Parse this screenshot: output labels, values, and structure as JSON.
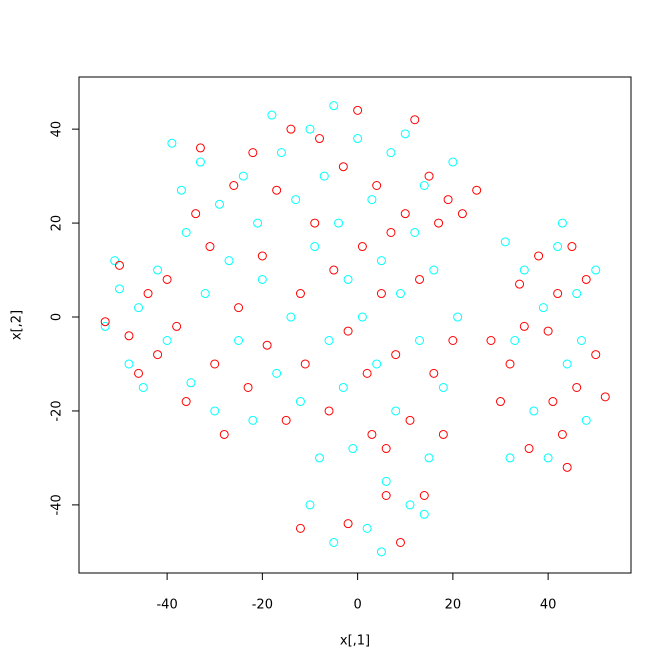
{
  "chart_data": {
    "type": "scatter",
    "x_label": "x[,1]",
    "y_label": "x[,2]",
    "xlim": [
      -58.5,
      57.4
    ],
    "ylim": [
      -54.5,
      51.1
    ],
    "xticks": [
      -40,
      -20,
      0,
      20,
      40
    ],
    "yticks": [
      -40,
      -20,
      0,
      20,
      40
    ],
    "series": [
      {
        "color": "#00ffff",
        "x": [
          -53,
          -51,
          -50,
          -48,
          -46,
          -45,
          -42,
          -40,
          -39,
          -37,
          -36,
          -35,
          -33,
          -32,
          -30,
          -29,
          -27,
          -25,
          -24,
          -22,
          -21,
          -20,
          -18,
          -17,
          -16,
          -14,
          -13,
          -12,
          -10,
          -9,
          -8,
          -7,
          -6,
          -5,
          -4,
          -3,
          -2,
          -1,
          0,
          1,
          2,
          3,
          4,
          5,
          6,
          7,
          8,
          9,
          10,
          11,
          12,
          13,
          14,
          15,
          16,
          18,
          20,
          21,
          -5,
          -10,
          5,
          14,
          31,
          33,
          35,
          37,
          39,
          40,
          42,
          43,
          44,
          46,
          48,
          50,
          32,
          47
        ],
        "values": [
          -2,
          12,
          6,
          -10,
          2,
          -15,
          10,
          -5,
          37,
          27,
          18,
          -14,
          33,
          5,
          -20,
          24,
          12,
          -5,
          30,
          -22,
          20,
          8,
          43,
          -12,
          35,
          0,
          25,
          -18,
          40,
          15,
          -30,
          30,
          -5,
          45,
          20,
          -15,
          8,
          -28,
          38,
          0,
          -45,
          25,
          -10,
          12,
          -35,
          35,
          -20,
          5,
          39,
          -40,
          18,
          -5,
          28,
          -30,
          10,
          -15,
          33,
          0,
          -48,
          -40,
          -50,
          -42,
          16,
          -5,
          10,
          -20,
          2,
          -30,
          15,
          20,
          -10,
          5,
          -22,
          10,
          -30,
          -5
        ]
      },
      {
        "color": "#ff0000",
        "x": [
          -53,
          -50,
          -48,
          -46,
          -44,
          -42,
          -40,
          -38,
          -36,
          -34,
          -33,
          -31,
          -30,
          -28,
          -26,
          -25,
          -23,
          -22,
          -20,
          -19,
          -17,
          -15,
          -14,
          -12,
          -11,
          -9,
          -8,
          -6,
          -5,
          -3,
          -2,
          0,
          1,
          2,
          3,
          4,
          5,
          6,
          7,
          8,
          9,
          10,
          11,
          12,
          13,
          14,
          15,
          16,
          17,
          18,
          19,
          20,
          22,
          25,
          -12,
          -2,
          6,
          28,
          30,
          32,
          34,
          36,
          38,
          40,
          41,
          42,
          44,
          45,
          46,
          48,
          50,
          52,
          35,
          43
        ],
        "values": [
          -1,
          11,
          -4,
          -12,
          5,
          -8,
          8,
          -2,
          -18,
          22,
          36,
          15,
          -10,
          -25,
          28,
          2,
          -15,
          35,
          13,
          -6,
          27,
          -22,
          40,
          5,
          -10,
          20,
          38,
          -20,
          10,
          32,
          -3,
          44,
          15,
          -12,
          -25,
          28,
          5,
          -38,
          18,
          -8,
          -48,
          22,
          -22,
          42,
          8,
          -38,
          30,
          -12,
          20,
          -25,
          25,
          -5,
          22,
          27,
          -45,
          -44,
          -28,
          -5,
          -18,
          -10,
          7,
          -28,
          13,
          -3,
          -18,
          5,
          -32,
          15,
          -15,
          8,
          -8,
          -17,
          -2,
          -25
        ]
      }
    ]
  }
}
